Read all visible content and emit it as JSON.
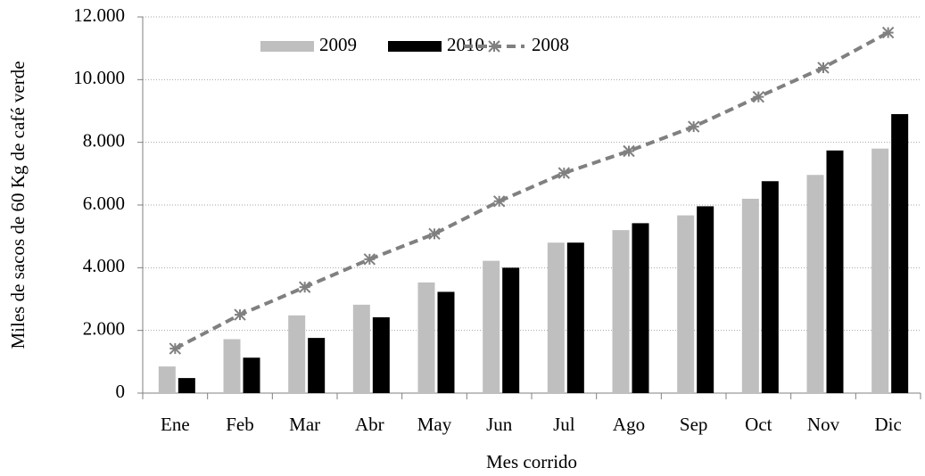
{
  "chart_data": {
    "type": "bar",
    "y_label": "Miles de sacos de 60 Kg de café verde",
    "x_label": "Mes corrido",
    "categories": [
      "Ene",
      "Feb",
      "Mar",
      "Abr",
      "May",
      "Jun",
      "Jul",
      "Ago",
      "Sep",
      "Oct",
      "Nov",
      "Dic"
    ],
    "series": [
      {
        "name": "2009",
        "type": "bar",
        "color": "#bfbfbf",
        "values": [
          850,
          1720,
          2480,
          2820,
          3530,
          4220,
          4800,
          5200,
          5670,
          6200,
          6960,
          7800
        ]
      },
      {
        "name": "2010",
        "type": "bar",
        "color": "#000000",
        "values": [
          480,
          1130,
          1760,
          2420,
          3230,
          4000,
          4800,
          5420,
          5960,
          6760,
          7740,
          8900
        ]
      },
      {
        "name": "2008",
        "type": "line",
        "color": "#808080",
        "dashed": true,
        "marker": "asterisk",
        "values": [
          1420,
          2500,
          3380,
          4270,
          5080,
          6120,
          7020,
          7720,
          8500,
          9450,
          10380,
          11500
        ]
      }
    ],
    "ylim": [
      0,
      12000
    ],
    "yticks": [
      0,
      {
        "value": 2000,
        "label": "2.000"
      },
      {
        "value": 4000,
        "label": "4.000"
      },
      {
        "value": 6000,
        "label": "6.000"
      },
      {
        "value": 8000,
        "label": "8.000"
      },
      {
        "value": 10000,
        "label": "10.000"
      },
      {
        "value": 12000,
        "label": "12.000"
      }
    ],
    "grid": true,
    "legend": "top"
  }
}
